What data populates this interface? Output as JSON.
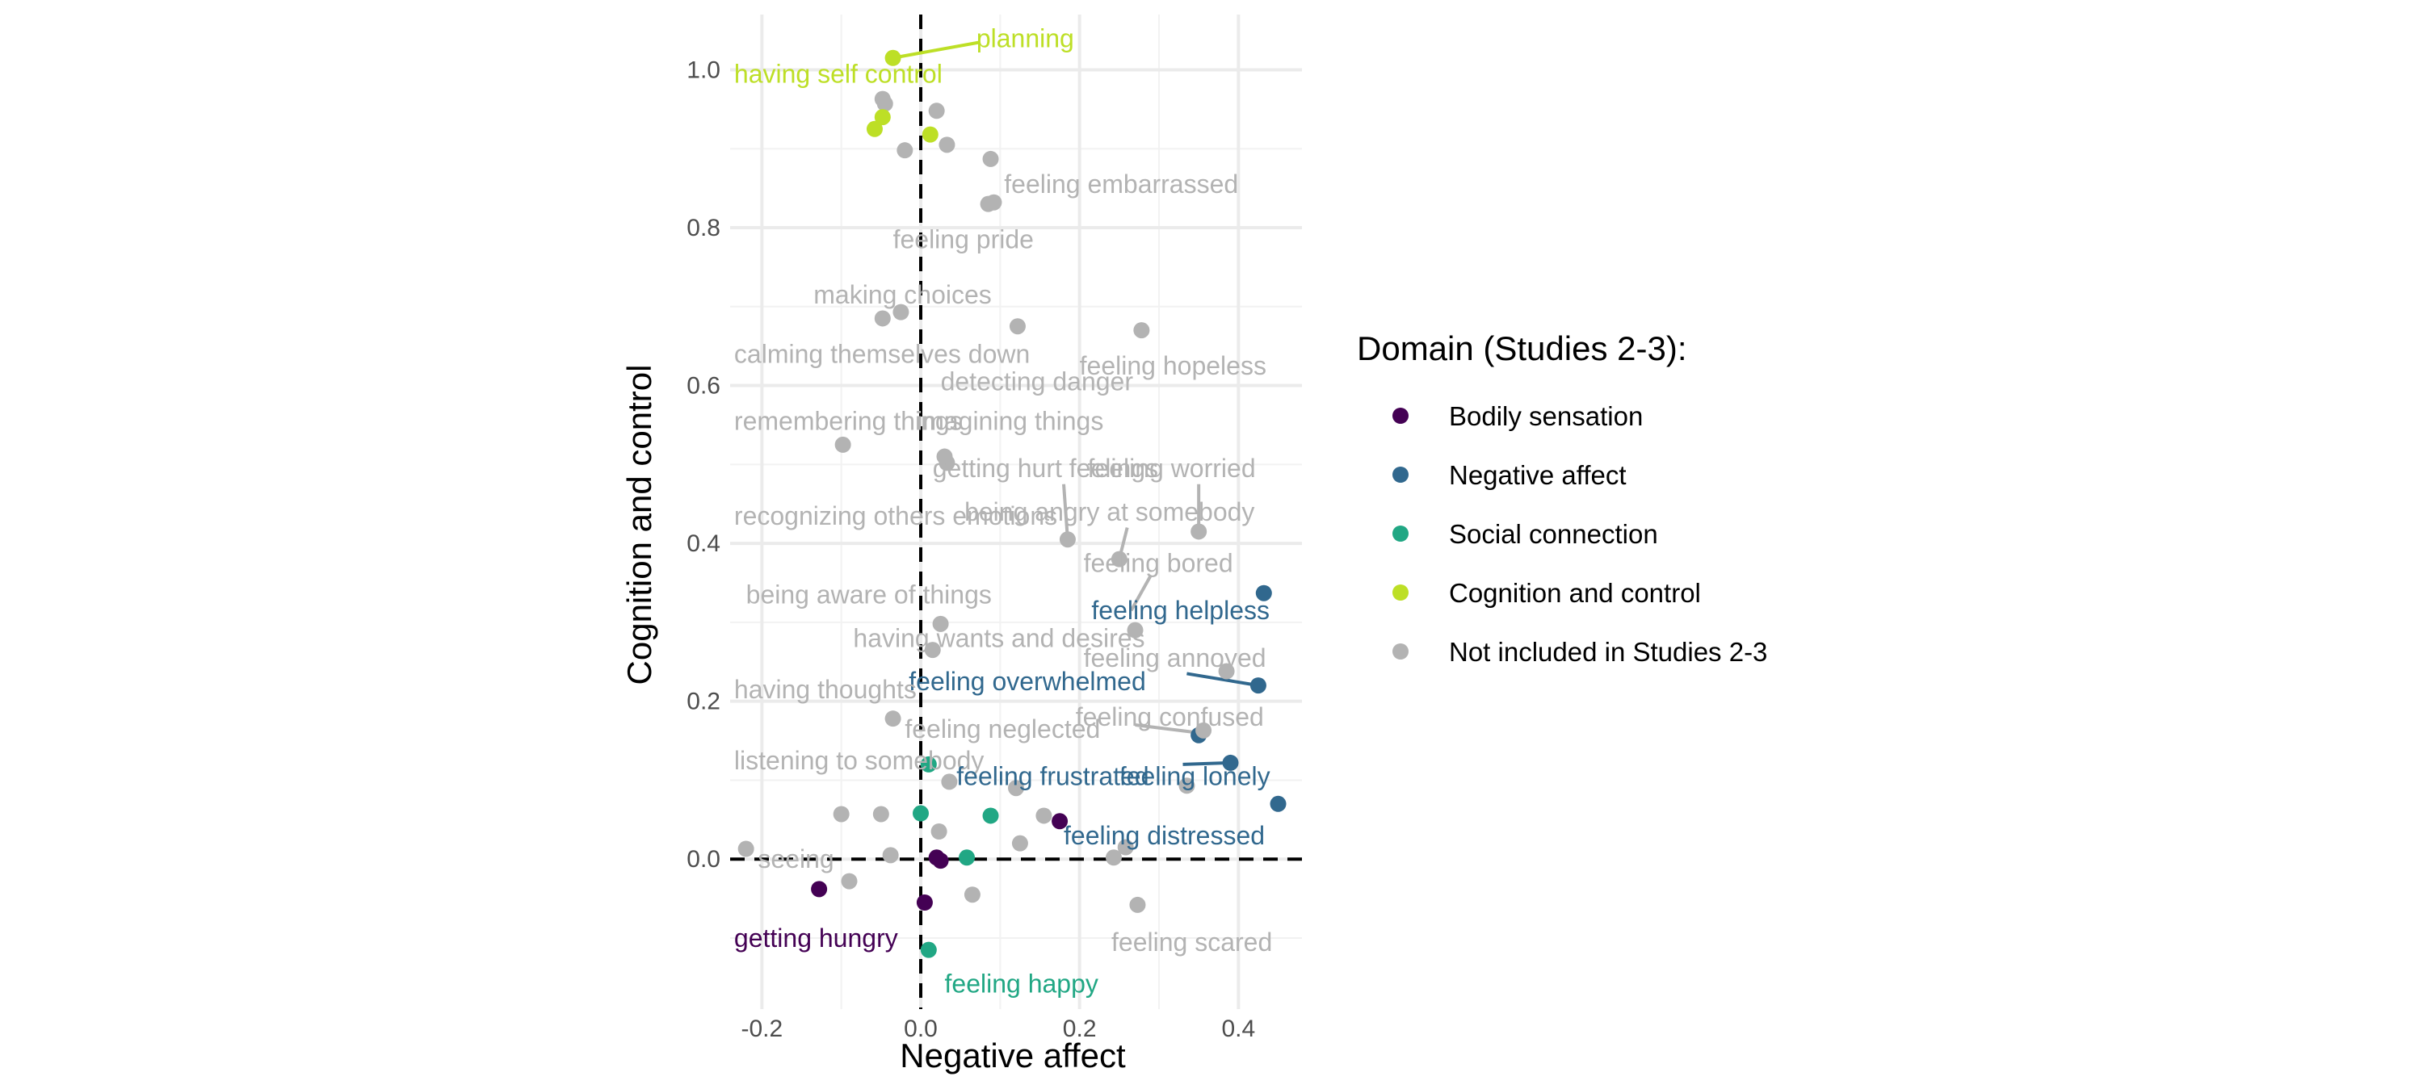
{
  "chart_data": {
    "type": "scatter",
    "title": "",
    "xlabel": "Negative affect",
    "ylabel": "Cognition and control",
    "xlim": [
      -0.24,
      0.48
    ],
    "ylim": [
      -0.19,
      1.07
    ],
    "x_ticks": [
      -0.2,
      0.0,
      0.2,
      0.4
    ],
    "x_tick_labels": [
      "-0.2",
      "0.0",
      "0.2",
      "0.4"
    ],
    "y_ticks": [
      0.0,
      0.2,
      0.4,
      0.6,
      0.8,
      1.0
    ],
    "y_tick_labels": [
      "0.0",
      "0.2",
      "0.4",
      "0.6",
      "0.8",
      "1.0"
    ],
    "grid": true,
    "reference_lines": {
      "x": 0,
      "y": 0,
      "style": "dashed"
    },
    "legend": {
      "title": "Domain (Studies 2-3):",
      "placement": "right",
      "entries": [
        {
          "name": "Bodily sensation",
          "color": "#440154"
        },
        {
          "name": "Negative affect",
          "color": "#31688e"
        },
        {
          "name": "Social connection",
          "color": "#21a784"
        },
        {
          "name": "Cognition and control",
          "color": "#bddf26"
        },
        {
          "name": "Not included in Studies 2-3",
          "color": "#b3b3b3"
        }
      ]
    },
    "labels": [
      {
        "text": "planning",
        "domain": 3,
        "x": 0.07,
        "y": 1.04,
        "lx": 0.075,
        "ly": 1.035,
        "px": -0.035,
        "py": 1.015
      },
      {
        "text": "having self control",
        "domain": 3,
        "x": -0.235,
        "y": 0.995
      },
      {
        "text": "feeling embarrassed",
        "domain": 4,
        "x": 0.105,
        "y": 0.855
      },
      {
        "text": "feeling pride",
        "domain": 4,
        "x": -0.035,
        "y": 0.785
      },
      {
        "text": "making choices",
        "domain": 4,
        "x": -0.135,
        "y": 0.715
      },
      {
        "text": "calming themselves down",
        "domain": 4,
        "x": -0.235,
        "y": 0.64
      },
      {
        "text": "feeling hopeless",
        "domain": 4,
        "x": 0.2,
        "y": 0.625
      },
      {
        "text": "detecting danger",
        "domain": 4,
        "x": 0.025,
        "y": 0.605
      },
      {
        "text": "remembering things",
        "domain": 4,
        "x": -0.235,
        "y": 0.555
      },
      {
        "text": "imagining things",
        "domain": 4,
        "x": -0.005,
        "y": 0.555
      },
      {
        "text": "getting hurt feelings",
        "domain": 4,
        "x": 0.015,
        "y": 0.495,
        "lx": 0.18,
        "ly": 0.475,
        "px": 0.185,
        "py": 0.405
      },
      {
        "text": "feeling worried",
        "domain": 4,
        "x": 0.21,
        "y": 0.495,
        "lx": 0.35,
        "ly": 0.475,
        "px": 0.35,
        "py": 0.415
      },
      {
        "text": "recognizing others emotions",
        "domain": 4,
        "x": -0.235,
        "y": 0.435
      },
      {
        "text": "being angry at somebody",
        "domain": 4,
        "x": 0.055,
        "y": 0.44,
        "lx": 0.26,
        "ly": 0.42,
        "px": 0.25,
        "py": 0.38
      },
      {
        "text": "feeling bored",
        "domain": 4,
        "x": 0.205,
        "y": 0.375,
        "lx": 0.29,
        "ly": 0.36,
        "px": 0.265,
        "py": 0.315
      },
      {
        "text": "feeling helpless",
        "domain": 1,
        "x": 0.215,
        "y": 0.315
      },
      {
        "text": "being aware of things",
        "domain": 4,
        "x": -0.22,
        "y": 0.335
      },
      {
        "text": "having wants and desires",
        "domain": 4,
        "x": -0.085,
        "y": 0.28
      },
      {
        "text": "feeling annoyed",
        "domain": 4,
        "x": 0.205,
        "y": 0.255
      },
      {
        "text": "feeling overwhelmed",
        "domain": 1,
        "x": -0.015,
        "y": 0.225,
        "lx": 0.335,
        "ly": 0.235,
        "px": 0.425,
        "py": 0.22
      },
      {
        "text": "having thoughts",
        "domain": 4,
        "x": -0.235,
        "y": 0.215
      },
      {
        "text": "feeling confused",
        "domain": 4,
        "x": 0.195,
        "y": 0.18,
        "lx": 0.27,
        "ly": 0.17,
        "px": 0.35,
        "py": 0.16
      },
      {
        "text": "feeling neglected",
        "domain": 4,
        "x": -0.02,
        "y": 0.165
      },
      {
        "text": "listening to somebody",
        "domain": 4,
        "x": -0.235,
        "y": 0.125
      },
      {
        "text": "feeling frustrated",
        "domain": 1,
        "x": 0.045,
        "y": 0.105
      },
      {
        "text": "feeling lonely",
        "domain": 1,
        "x": 0.25,
        "y": 0.105,
        "lx": 0.33,
        "ly": 0.12,
        "px": 0.39,
        "py": 0.122
      },
      {
        "text": "feeling distressed",
        "domain": 1,
        "x": 0.18,
        "y": 0.03
      },
      {
        "text": "seeing",
        "domain": 4,
        "x": -0.205,
        "y": 0.0
      },
      {
        "text": "getting hungry",
        "domain": 0,
        "x": -0.235,
        "y": -0.1
      },
      {
        "text": "feeling happy",
        "domain": 2,
        "x": 0.03,
        "y": -0.158
      },
      {
        "text": "feeling scared",
        "domain": 4,
        "x": 0.24,
        "y": -0.105
      }
    ],
    "points": [
      {
        "x": -0.035,
        "y": 1.015,
        "domain": 3
      },
      {
        "x": -0.048,
        "y": 0.963,
        "domain": 4
      },
      {
        "x": -0.045,
        "y": 0.957,
        "domain": 4
      },
      {
        "x": -0.048,
        "y": 0.94,
        "domain": 3
      },
      {
        "x": -0.058,
        "y": 0.925,
        "domain": 3
      },
      {
        "x": 0.02,
        "y": 0.948,
        "domain": 4
      },
      {
        "x": -0.02,
        "y": 0.898,
        "domain": 4
      },
      {
        "x": 0.012,
        "y": 0.918,
        "domain": 3
      },
      {
        "x": 0.033,
        "y": 0.905,
        "domain": 4
      },
      {
        "x": 0.088,
        "y": 0.887,
        "domain": 4
      },
      {
        "x": 0.085,
        "y": 0.83,
        "domain": 4
      },
      {
        "x": 0.092,
        "y": 0.832,
        "domain": 4
      },
      {
        "x": -0.048,
        "y": 0.685,
        "domain": 4
      },
      {
        "x": -0.025,
        "y": 0.693,
        "domain": 4
      },
      {
        "x": 0.122,
        "y": 0.675,
        "domain": 4
      },
      {
        "x": 0.278,
        "y": 0.67,
        "domain": 4
      },
      {
        "x": -0.098,
        "y": 0.525,
        "domain": 4
      },
      {
        "x": 0.03,
        "y": 0.51,
        "domain": 4
      },
      {
        "x": 0.033,
        "y": 0.502,
        "domain": 4
      },
      {
        "x": 0.185,
        "y": 0.405,
        "domain": 4
      },
      {
        "x": 0.35,
        "y": 0.415,
        "domain": 4
      },
      {
        "x": 0.25,
        "y": 0.38,
        "domain": 4
      },
      {
        "x": 0.27,
        "y": 0.29,
        "domain": 4
      },
      {
        "x": 0.432,
        "y": 0.337,
        "domain": 1
      },
      {
        "x": 0.025,
        "y": 0.298,
        "domain": 4
      },
      {
        "x": 0.015,
        "y": 0.265,
        "domain": 4
      },
      {
        "x": 0.385,
        "y": 0.238,
        "domain": 4
      },
      {
        "x": 0.425,
        "y": 0.22,
        "domain": 1
      },
      {
        "x": -0.035,
        "y": 0.178,
        "domain": 4
      },
      {
        "x": 0.35,
        "y": 0.157,
        "domain": 1
      },
      {
        "x": 0.356,
        "y": 0.163,
        "domain": 4
      },
      {
        "x": 0.01,
        "y": 0.12,
        "domain": 2
      },
      {
        "x": 0.39,
        "y": 0.122,
        "domain": 1
      },
      {
        "x": 0.036,
        "y": 0.098,
        "domain": 4
      },
      {
        "x": 0.12,
        "y": 0.09,
        "domain": 4
      },
      {
        "x": 0.335,
        "y": 0.093,
        "domain": 4
      },
      {
        "x": 0.45,
        "y": 0.07,
        "domain": 1
      },
      {
        "x": -0.1,
        "y": 0.057,
        "domain": 4
      },
      {
        "x": -0.05,
        "y": 0.057,
        "domain": 4
      },
      {
        "x": 0.0,
        "y": 0.058,
        "domain": 2
      },
      {
        "x": 0.088,
        "y": 0.055,
        "domain": 2
      },
      {
        "x": 0.155,
        "y": 0.055,
        "domain": 4
      },
      {
        "x": 0.175,
        "y": 0.048,
        "domain": 0
      },
      {
        "x": 0.023,
        "y": 0.035,
        "domain": 4
      },
      {
        "x": 0.125,
        "y": 0.02,
        "domain": 4
      },
      {
        "x": 0.258,
        "y": 0.015,
        "domain": 4
      },
      {
        "x": -0.22,
        "y": 0.013,
        "domain": 4
      },
      {
        "x": -0.038,
        "y": 0.005,
        "domain": 4
      },
      {
        "x": 0.02,
        "y": 0.002,
        "domain": 0
      },
      {
        "x": 0.025,
        "y": -0.002,
        "domain": 0
      },
      {
        "x": 0.058,
        "y": 0.002,
        "domain": 2
      },
      {
        "x": 0.243,
        "y": 0.002,
        "domain": 4
      },
      {
        "x": -0.09,
        "y": -0.028,
        "domain": 4
      },
      {
        "x": -0.128,
        "y": -0.038,
        "domain": 0
      },
      {
        "x": 0.065,
        "y": -0.045,
        "domain": 4
      },
      {
        "x": 0.005,
        "y": -0.055,
        "domain": 0
      },
      {
        "x": 0.273,
        "y": -0.058,
        "domain": 4
      },
      {
        "x": 0.01,
        "y": -0.115,
        "domain": 2
      }
    ]
  }
}
